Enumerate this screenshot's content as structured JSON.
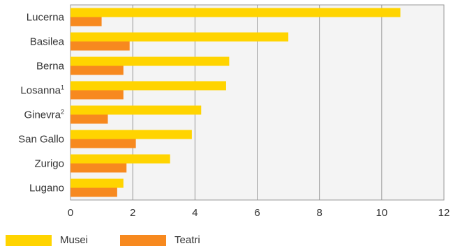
{
  "colors": {
    "musei": "#FFD400",
    "teatri": "#F7891F",
    "grid": "#999999",
    "plot_bg": "#F4F4F4"
  },
  "chart_data": {
    "type": "bar",
    "orientation": "horizontal",
    "categories": [
      {
        "name": "Lucerna",
        "sup": ""
      },
      {
        "name": "Basilea",
        "sup": ""
      },
      {
        "name": "Berna",
        "sup": ""
      },
      {
        "name": "Losanna",
        "sup": "1"
      },
      {
        "name": "Ginevra",
        "sup": "2"
      },
      {
        "name": "San Gallo",
        "sup": ""
      },
      {
        "name": "Zurigo",
        "sup": ""
      },
      {
        "name": "Lugano",
        "sup": ""
      }
    ],
    "series": [
      {
        "name": "Musei",
        "color": "#FFD400",
        "values": [
          10.6,
          7.0,
          5.1,
          5.0,
          4.2,
          3.9,
          3.2,
          1.7
        ]
      },
      {
        "name": "Teatri",
        "color": "#F7891F",
        "values": [
          1.0,
          1.9,
          1.7,
          1.7,
          1.2,
          2.1,
          1.8,
          1.5
        ]
      }
    ],
    "xticks": [
      0,
      2,
      4,
      6,
      8,
      10,
      12
    ],
    "xlim": [
      0,
      12
    ],
    "grid": true,
    "legend": "bottom-left"
  }
}
